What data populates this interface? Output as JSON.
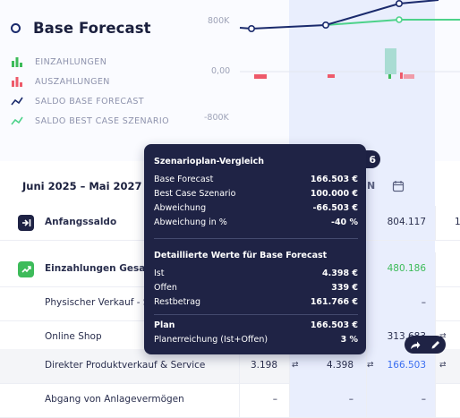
{
  "header": {
    "title": "Base Forecast",
    "legend": [
      {
        "label": "EINZAHLUNGEN",
        "icon": "bar-chart-icon",
        "color": "#3dbb5a"
      },
      {
        "label": "AUSZAHLUNGEN",
        "icon": "bar-chart-icon",
        "color": "#ee5a6a"
      },
      {
        "label": "SALDO BASE FORECAST",
        "icon": "trend-line-icon",
        "color": "#1a2a6c"
      },
      {
        "label": "SALDO BEST CASE SZENARIO",
        "icon": "trend-line-icon",
        "color": "#4dd28a"
      }
    ],
    "y_labels": [
      "800K",
      "0,00",
      "-800K"
    ]
  },
  "toolbar": {
    "date_range": "Juni 2025 – Mai 2027",
    "column_label": "N",
    "badge": "6"
  },
  "table": {
    "rows": [
      {
        "label": "Anfangssaldo",
        "icon": "arrow-into-bar-icon",
        "values": [
          "",
          "",
          "804.117",
          "1"
        ],
        "bold": true
      },
      {
        "label": "Einzahlungen Gesam",
        "icon": "trend-up-icon",
        "values": [
          "",
          "",
          "480.186",
          ""
        ],
        "bold": true
      },
      {
        "label": "Physischer Verkauf - S",
        "values": [
          "",
          "",
          "–",
          ""
        ]
      },
      {
        "label": "Online Shop",
        "values": [
          "",
          "",
          "313.683",
          ""
        ]
      },
      {
        "label": "Direkter Produktverkauf & Service",
        "values": [
          "3.198",
          "4.398",
          "166.503",
          ""
        ]
      },
      {
        "label": "Abgang von Anlagevermögen",
        "values": [
          "–",
          "–",
          "–",
          ""
        ]
      }
    ]
  },
  "tooltip": {
    "title": "Szenarioplan-Vergleich",
    "comparison": [
      {
        "label": "Base Forecast",
        "value": "166.503 €"
      },
      {
        "label": "Best Case Szenario",
        "value": "100.000 €"
      },
      {
        "label": "Abweichung",
        "value": "-66.503 €"
      },
      {
        "label": "Abweichung in %",
        "value": "-40 %"
      }
    ],
    "details_title": "Detaillierte Werte für Base Forecast",
    "details": [
      {
        "label": "Ist",
        "value": "4.398 €"
      },
      {
        "label": "Offen",
        "value": "339 €"
      },
      {
        "label": "Restbetrag",
        "value": "161.766 €"
      }
    ],
    "plan": {
      "label": "Plan",
      "value": "166.503 €"
    },
    "achievement": {
      "label": "Planerreichung (Ist+Offen)",
      "value": "3 %"
    }
  }
}
